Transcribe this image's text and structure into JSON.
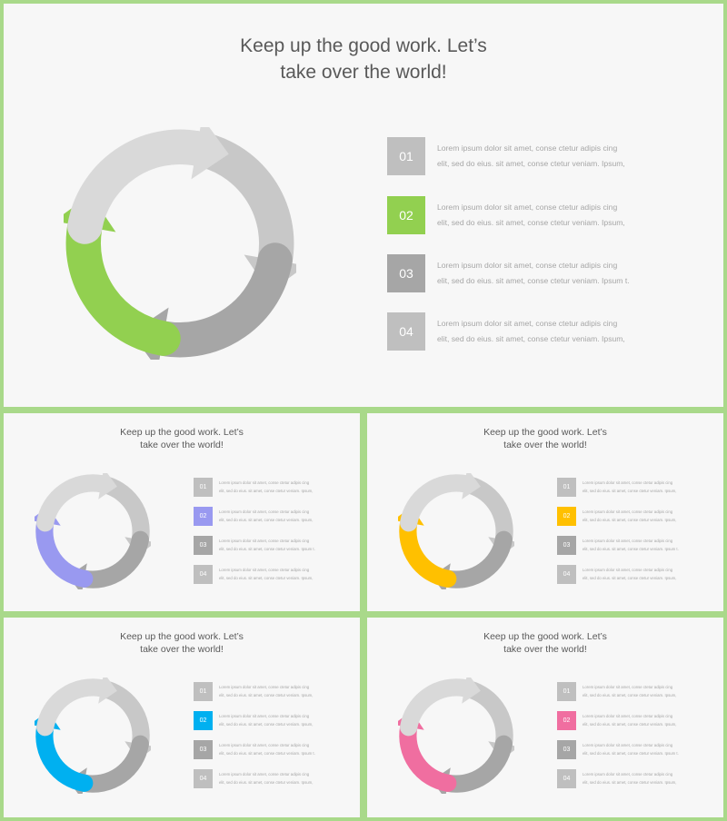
{
  "title_lines": [
    "Keep up the good work. Let’s",
    "take over the world!"
  ],
  "items": [
    {
      "number": "01",
      "line1": "Lorem ipsum dolor sit amet, conse ctetur adipis cing",
      "line2": "elit, sed do eius. sit amet, conse ctetur veniam. Ipsum,"
    },
    {
      "number": "02",
      "line1": "Lorem ipsum dolor sit amet, conse ctetur adipis cing",
      "line2": "elit, sed do eius. sit amet, conse ctetur veniam. Ipsum,"
    },
    {
      "number": "03",
      "line1": "Lorem ipsum dolor sit amet, conse ctetur adipis cing",
      "line2": "elit, sed do eius. sit amet, conse ctetur veniam. Ipsum t."
    },
    {
      "number": "04",
      "line1": "Lorem ipsum dolor sit amet, conse ctetur adipis cing",
      "line2": "elit, sed do eius. sit amet, conse ctetur veniam. Ipsum,"
    }
  ],
  "colors": {
    "frame": "#a9d98a",
    "slide_background": "#f7f7f7",
    "arrow_top_left": "#d9d9d9",
    "arrow_top_right": "#c8c8c8",
    "arrow_bottom_right": "#a6a6a6",
    "box_01": "#bfbfbf",
    "box_03": "#a6a6a6",
    "box_04": "#bfbfbf"
  },
  "slides": [
    {
      "variant": "main",
      "accent": "#92d050"
    },
    {
      "variant": "small",
      "accent": "#9999f0"
    },
    {
      "variant": "small",
      "accent": "#ffc000"
    },
    {
      "variant": "small",
      "accent": "#00b0f0"
    },
    {
      "variant": "small",
      "accent": "#f06ea0"
    }
  ]
}
